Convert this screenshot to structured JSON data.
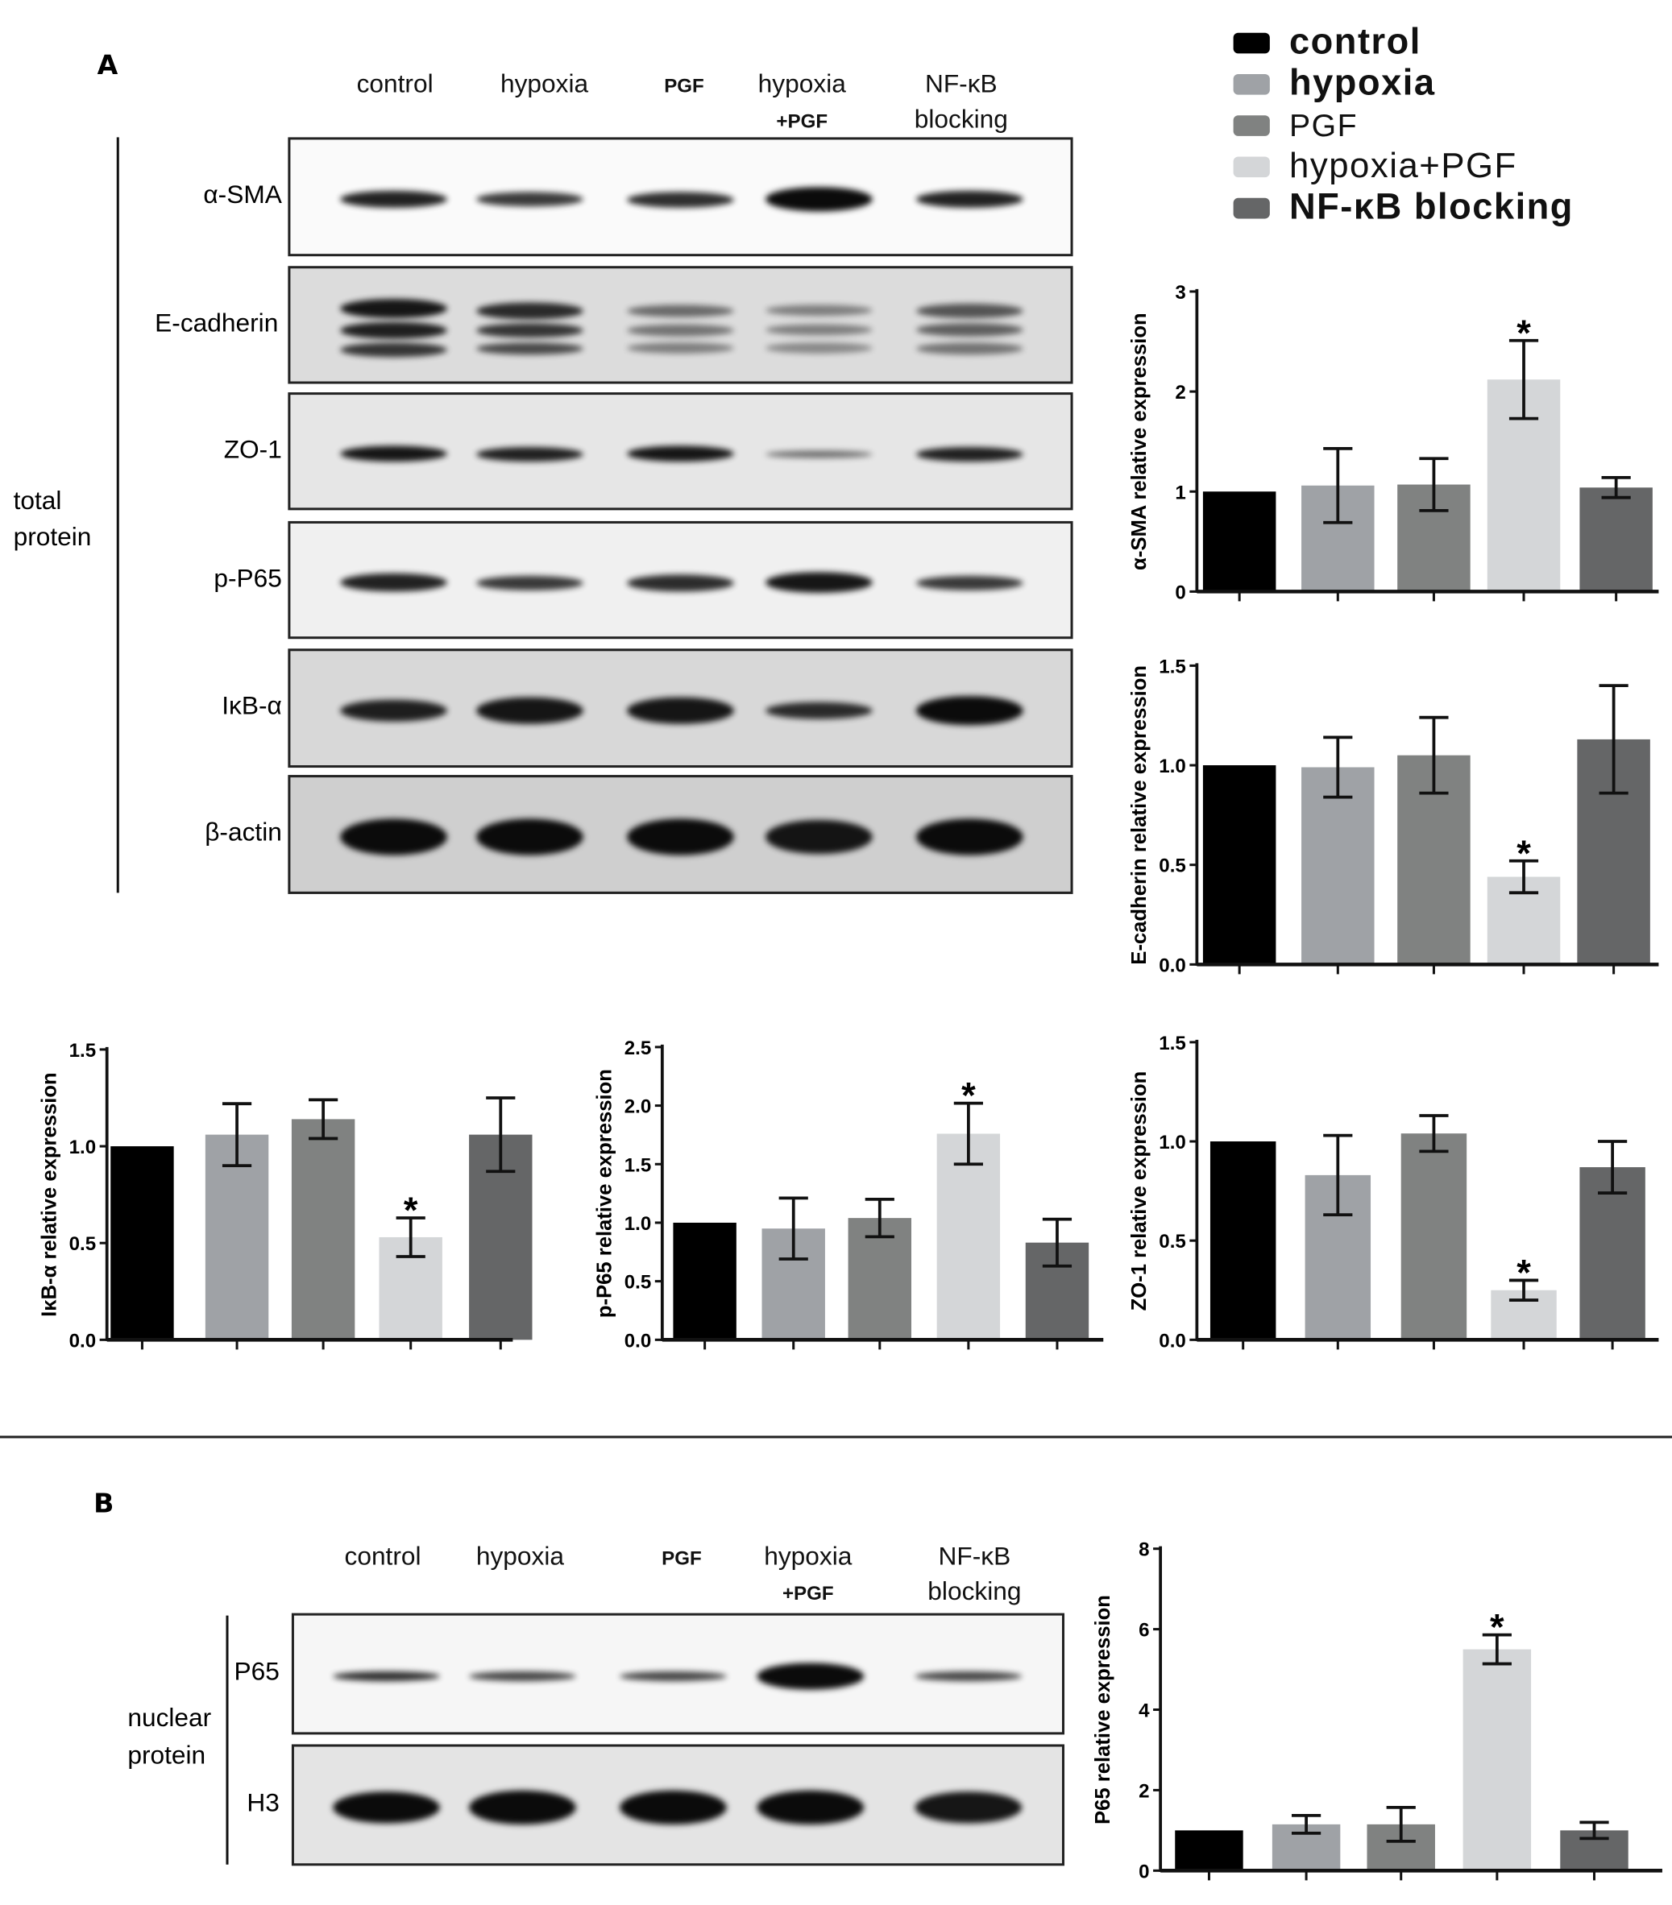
{
  "panel_a": {
    "letter": "A",
    "lanes": [
      "control",
      "hypoxia",
      "PGF",
      "hypoxia",
      "+PGF",
      "NF-κB",
      "blocking"
    ],
    "rows": [
      "α-SMA",
      "E-cadherin",
      "ZO-1",
      "p-P65",
      "IκB-α",
      "β-actin"
    ],
    "group_label": [
      "total",
      "protein"
    ]
  },
  "panel_b": {
    "letter": "B",
    "lanes": [
      "control",
      "hypoxia",
      "PGF",
      "hypoxia",
      "+PGF",
      "NF-κB",
      "blocking"
    ],
    "rows": [
      "P65",
      "H3"
    ],
    "group_label": [
      "nuclear",
      "protein"
    ]
  },
  "legend": {
    "items": [
      {
        "label": "control",
        "color": "#000000"
      },
      {
        "label": "hypoxia",
        "color": "#9fa2a6"
      },
      {
        "label": "PGF",
        "color": "#808281"
      },
      {
        "label": "hypoxia+PGF",
        "color": "#d4d6d8"
      },
      {
        "label": "NF-κB blocking",
        "color": "#656667"
      }
    ]
  },
  "chart_data": [
    {
      "id": "asma",
      "type": "bar",
      "ylabel": "α-SMA relative expression",
      "categories": [
        "control",
        "hypoxia",
        "PGF",
        "hypoxia+PGF",
        "NF-κB blocking"
      ],
      "values": [
        1.0,
        1.06,
        1.07,
        2.12,
        1.04
      ],
      "errors": [
        0,
        0.37,
        0.26,
        0.39,
        0.1
      ],
      "significance": [
        "",
        "",
        "",
        "*",
        ""
      ],
      "ylim": [
        0,
        3
      ],
      "yticks": [
        "0",
        "1",
        "2",
        "3"
      ],
      "ytick_values": [
        0,
        1,
        2,
        3
      ]
    },
    {
      "id": "ecad",
      "type": "bar",
      "ylabel": "E-cadherin relative expression",
      "categories": [
        "control",
        "hypoxia",
        "PGF",
        "hypoxia+PGF",
        "NF-κB blocking"
      ],
      "values": [
        1.0,
        0.99,
        1.05,
        0.44,
        1.13
      ],
      "errors": [
        0,
        0.15,
        0.19,
        0.08,
        0.27
      ],
      "significance": [
        "",
        "",
        "",
        "*",
        ""
      ],
      "ylim": [
        0,
        1.5
      ],
      "yticks": [
        "0.0",
        "0.5",
        "1.0",
        "1.5"
      ],
      "ytick_values": [
        0,
        0.5,
        1,
        1.5
      ]
    },
    {
      "id": "ikb",
      "type": "bar",
      "ylabel": "IκB-α relative expression",
      "categories": [
        "control",
        "hypoxia",
        "PGF",
        "hypoxia+PGF",
        "NF-κB blocking"
      ],
      "values": [
        1.0,
        1.06,
        1.14,
        0.53,
        1.06
      ],
      "errors": [
        0,
        0.16,
        0.1,
        0.1,
        0.19
      ],
      "significance": [
        "",
        "",
        "",
        "*",
        ""
      ],
      "ylim": [
        0,
        1.5
      ],
      "yticks": [
        "0.0",
        "0.5",
        "1.0",
        "1.5"
      ],
      "ytick_values": [
        0,
        0.5,
        1,
        1.5
      ]
    },
    {
      "id": "pp65",
      "type": "bar",
      "ylabel": "p-P65 relative expression",
      "categories": [
        "control",
        "hypoxia",
        "PGF",
        "hypoxia+PGF",
        "NF-κB blocking"
      ],
      "values": [
        1.0,
        0.95,
        1.04,
        1.76,
        0.83
      ],
      "errors": [
        0,
        0.26,
        0.16,
        0.26,
        0.2
      ],
      "significance": [
        "",
        "",
        "",
        "*",
        ""
      ],
      "ylim": [
        0,
        2.5
      ],
      "yticks": [
        "0.0",
        "0.5",
        "1.0",
        "1.5",
        "2.0",
        "2.5"
      ],
      "ytick_values": [
        0,
        0.5,
        1,
        1.5,
        2,
        2.5
      ]
    },
    {
      "id": "zo1",
      "type": "bar",
      "ylabel": "ZO-1 relative expression",
      "categories": [
        "control",
        "hypoxia",
        "PGF",
        "hypoxia+PGF",
        "NF-κB blocking"
      ],
      "values": [
        1.0,
        0.83,
        1.04,
        0.25,
        0.87
      ],
      "errors": [
        0,
        0.2,
        0.09,
        0.05,
        0.13
      ],
      "significance": [
        "",
        "",
        "",
        "*",
        ""
      ],
      "ylim": [
        0,
        1.5
      ],
      "yticks": [
        "0.0",
        "0.5",
        "1.0",
        "1.5"
      ],
      "ytick_values": [
        0,
        0.5,
        1,
        1.5
      ]
    },
    {
      "id": "p65",
      "type": "bar",
      "ylabel": "P65 relative expression",
      "categories": [
        "control",
        "hypoxia",
        "PGF",
        "hypoxia+PGF",
        "NF-κB blocking"
      ],
      "values": [
        1.0,
        1.15,
        1.15,
        5.5,
        1.0
      ],
      "errors": [
        0,
        0.22,
        0.42,
        0.36,
        0.2
      ],
      "significance": [
        "",
        "",
        "",
        "*",
        ""
      ],
      "ylim": [
        0,
        8
      ],
      "yticks": [
        "0",
        "2",
        "4",
        "6",
        "8"
      ],
      "ytick_values": [
        0,
        2,
        4,
        6,
        8
      ]
    }
  ]
}
